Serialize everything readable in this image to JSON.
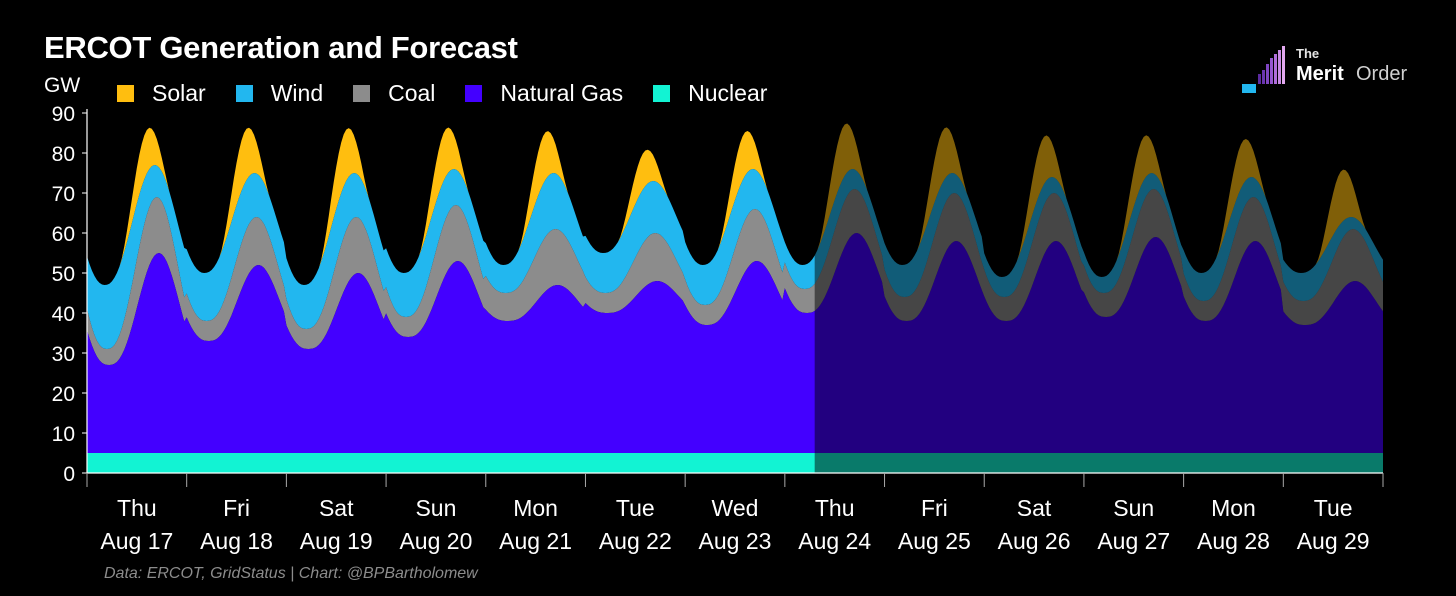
{
  "title": "ERCOT Generation and Forecast",
  "source": "Data: ERCOT, GridStatus | Chart: @BPBartholomew",
  "logo": {
    "line1": "The",
    "word1": "Merit",
    "word2": "Order"
  },
  "chart_data": {
    "type": "area",
    "stacked": true,
    "title": "ERCOT Generation and Forecast",
    "ylabel": "GW",
    "ylim": [
      0,
      90
    ],
    "yticks": [
      0,
      10,
      20,
      30,
      40,
      50,
      60,
      70,
      80,
      90
    ],
    "grid": false,
    "legend_position": "top-left",
    "x_labels": [
      [
        "Thu",
        "Aug 17"
      ],
      [
        "Fri",
        "Aug 18"
      ],
      [
        "Sat",
        "Aug 19"
      ],
      [
        "Sun",
        "Aug 20"
      ],
      [
        "Mon",
        "Aug 21"
      ],
      [
        "Tue",
        "Aug 22"
      ],
      [
        "Wed",
        "Aug 23"
      ],
      [
        "Thu",
        "Aug 24"
      ],
      [
        "Fri",
        "Aug 25"
      ],
      [
        "Sat",
        "Aug 26"
      ],
      [
        "Sun",
        "Aug 27"
      ],
      [
        "Mon",
        "Aug 28"
      ],
      [
        "Tue",
        "Aug 29"
      ]
    ],
    "days": 13,
    "forecast_starts_day": 7.3,
    "series": [
      {
        "name": "Solar",
        "color": "#FFBE0F"
      },
      {
        "name": "Wind",
        "color": "#22B7EF"
      },
      {
        "name": "Coal",
        "color": "#8C8C8C"
      },
      {
        "name": "Natural Gas",
        "color": "#4300FF"
      },
      {
        "name": "Nuclear",
        "color": "#12F3D3"
      }
    ],
    "nuclear_gw": 5,
    "daily": [
      {
        "gas_min": 27,
        "gas_max": 55,
        "coal_min": 31,
        "coal_max": 69,
        "wind_min": 47,
        "wind_max": 77,
        "total_max": 85
      },
      {
        "gas_min": 33,
        "gas_max": 52,
        "coal_min": 38,
        "coal_max": 64,
        "wind_min": 50,
        "wind_max": 75,
        "total_max": 85
      },
      {
        "gas_min": 31,
        "gas_max": 50,
        "coal_min": 36,
        "coal_max": 64,
        "wind_min": 47,
        "wind_max": 75,
        "total_max": 85
      },
      {
        "gas_min": 34,
        "gas_max": 53,
        "coal_min": 39,
        "coal_max": 67,
        "wind_min": 50,
        "wind_max": 76,
        "total_max": 85
      },
      {
        "gas_min": 38,
        "gas_max": 47,
        "coal_min": 45,
        "coal_max": 61,
        "wind_min": 52,
        "wind_max": 75,
        "total_max": 84
      },
      {
        "gas_min": 40,
        "gas_max": 48,
        "coal_min": 45,
        "coal_max": 60,
        "wind_min": 55,
        "wind_max": 73,
        "total_max": 79
      },
      {
        "gas_min": 37,
        "gas_max": 53,
        "coal_min": 42,
        "coal_max": 66,
        "wind_min": 52,
        "wind_max": 76,
        "total_max": 84
      },
      {
        "gas_min": 40,
        "gas_max": 60,
        "coal_min": 46,
        "coal_max": 71,
        "wind_min": 52,
        "wind_max": 76,
        "total_max": 86
      },
      {
        "gas_min": 38,
        "gas_max": 58,
        "coal_min": 44,
        "coal_max": 70,
        "wind_min": 52,
        "wind_max": 75,
        "total_max": 85
      },
      {
        "gas_min": 38,
        "gas_max": 58,
        "coal_min": 44,
        "coal_max": 70,
        "wind_min": 49,
        "wind_max": 74,
        "total_max": 83
      },
      {
        "gas_min": 39,
        "gas_max": 59,
        "coal_min": 45,
        "coal_max": 71,
        "wind_min": 49,
        "wind_max": 75,
        "total_max": 83
      },
      {
        "gas_min": 38,
        "gas_max": 58,
        "coal_min": 43,
        "coal_max": 69,
        "wind_min": 50,
        "wind_max": 74,
        "total_max": 82
      },
      {
        "gas_min": 37,
        "gas_max": 48,
        "coal_min": 43,
        "coal_max": 61,
        "wind_min": 50,
        "wind_max": 64,
        "total_max": 74
      }
    ]
  }
}
